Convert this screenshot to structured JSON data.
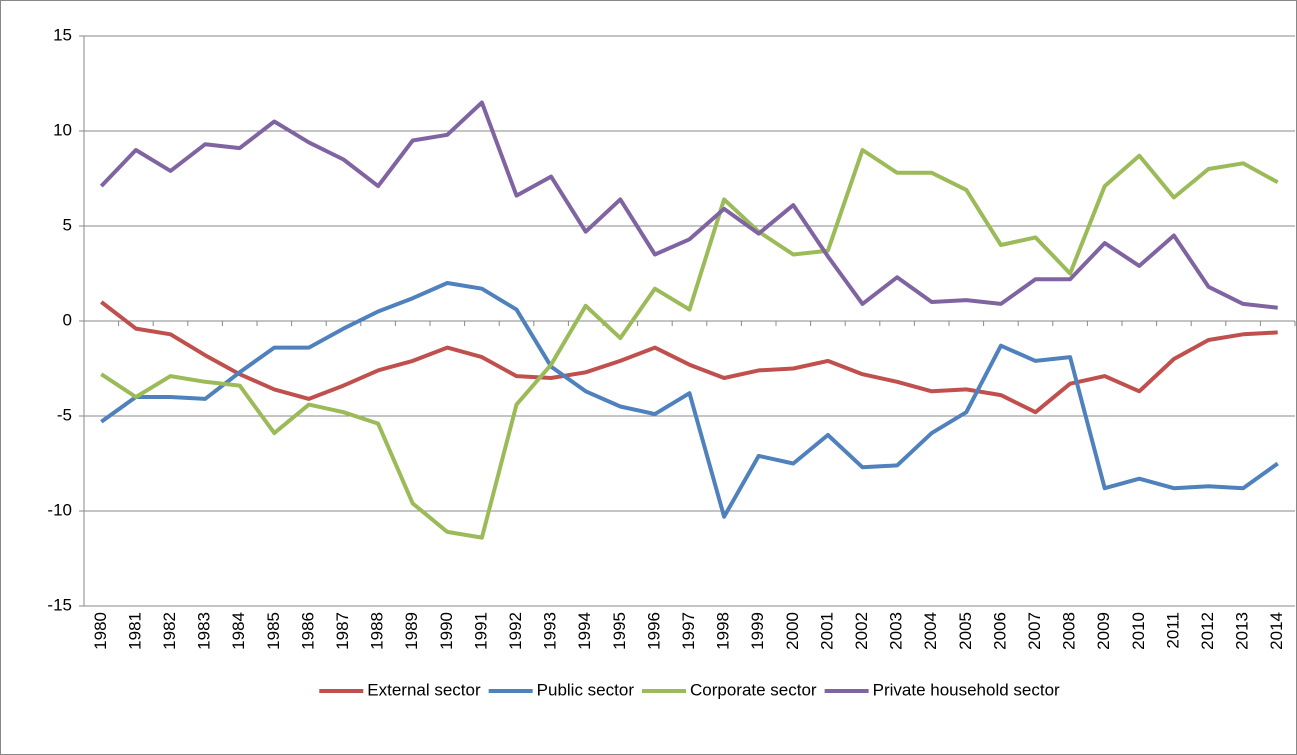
{
  "chart_data": {
    "type": "line",
    "categories": [
      "1980",
      "1981",
      "1982",
      "1983",
      "1984",
      "1985",
      "1986",
      "1987",
      "1988",
      "1989",
      "1990",
      "1991",
      "1992",
      "1993",
      "1994",
      "1995",
      "1996",
      "1997",
      "1998",
      "1999",
      "2000",
      "2001",
      "2002",
      "2003",
      "2004",
      "2005",
      "2006",
      "2007",
      "2008",
      "2009",
      "2010",
      "2011",
      "2012",
      "2013",
      "2014"
    ],
    "series": [
      {
        "name": "External sector",
        "color": "#c0504d",
        "values": [
          1.0,
          -0.4,
          -0.7,
          -1.8,
          -2.8,
          -3.6,
          -4.1,
          -3.4,
          -2.6,
          -2.1,
          -1.4,
          -1.9,
          -2.9,
          -3.0,
          -2.7,
          -2.1,
          -1.4,
          -2.3,
          -3.0,
          -2.6,
          -2.5,
          -2.1,
          -2.8,
          -3.2,
          -3.7,
          -3.6,
          -3.9,
          -4.8,
          -3.3,
          -2.9,
          -3.7,
          -2.0,
          -1.0,
          -0.7,
          -0.6
        ]
      },
      {
        "name": "Public sector",
        "color": "#4f81bd",
        "values": [
          -5.3,
          -4.0,
          -4.0,
          -4.1,
          -2.7,
          -1.4,
          -1.4,
          -0.4,
          0.5,
          1.2,
          2.0,
          1.7,
          0.6,
          -2.4,
          -3.7,
          -4.5,
          -4.9,
          -3.8,
          -10.3,
          -7.1,
          -7.5,
          -6.0,
          -7.7,
          -7.6,
          -5.9,
          -4.8,
          -1.3,
          -2.1,
          -1.9,
          -8.8,
          -8.3,
          -8.8,
          -8.7,
          -8.8,
          -7.5
        ]
      },
      {
        "name": "Corporate sector",
        "color": "#9bbb59",
        "values": [
          -2.8,
          -4.0,
          -2.9,
          -3.2,
          -3.4,
          -5.9,
          -4.4,
          -4.8,
          -5.4,
          -9.6,
          -11.1,
          -11.4,
          -4.4,
          -2.3,
          0.8,
          -0.9,
          1.7,
          0.6,
          6.4,
          4.7,
          3.5,
          3.7,
          9.0,
          7.8,
          7.8,
          6.9,
          4.0,
          4.4,
          2.5,
          7.1,
          8.7,
          6.5,
          8.0,
          8.3,
          7.3
        ]
      },
      {
        "name": "Private household sector",
        "color": "#8064a2",
        "values": [
          7.1,
          9.0,
          7.9,
          9.3,
          9.1,
          10.5,
          9.4,
          8.5,
          7.1,
          9.5,
          9.8,
          11.5,
          6.6,
          7.6,
          4.7,
          6.4,
          3.5,
          4.3,
          5.9,
          4.6,
          6.1,
          3.4,
          0.9,
          2.3,
          1.0,
          1.1,
          0.9,
          2.2,
          2.2,
          4.1,
          2.9,
          4.5,
          1.8,
          0.9,
          0.7
        ]
      }
    ],
    "ylim": [
      -15,
      15
    ],
    "yticks": [
      -15,
      -10,
      -5,
      0,
      5,
      10,
      15
    ],
    "grid": true,
    "legend": "bottom"
  }
}
